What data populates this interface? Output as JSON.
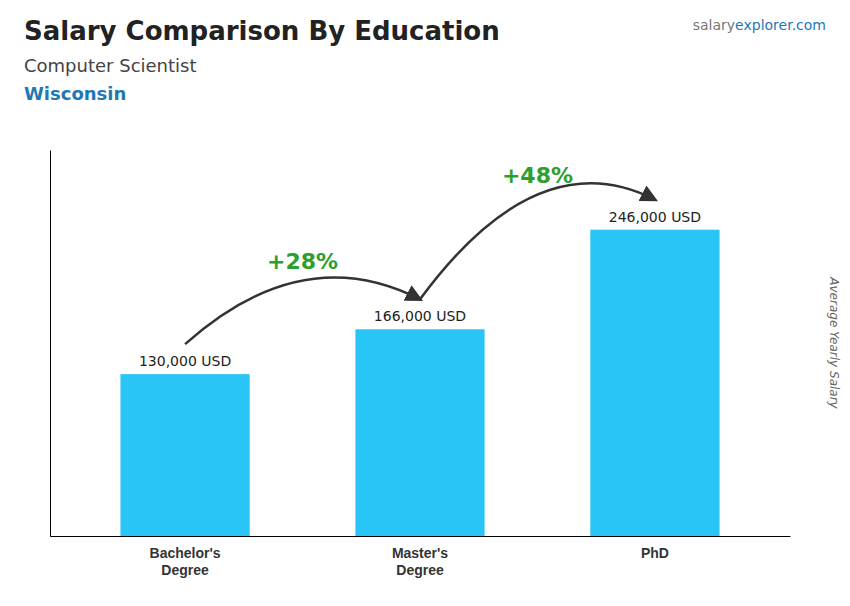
{
  "chart_data": {
    "type": "bar",
    "title": "Salary Comparison By Education",
    "subtitle": "Computer Scientist",
    "location": "Wisconsin",
    "ylabel": "Average Yearly Salary",
    "categories": [
      "Bachelor's\nDegree",
      "Master's\nDegree",
      "PhD"
    ],
    "values": [
      130000,
      166000,
      246000
    ],
    "value_labels": [
      "130,000 USD",
      "166,000 USD",
      "246,000 USD"
    ],
    "data_labels": true,
    "annotations": [
      "+28%",
      "+48%"
    ],
    "watermark": [
      "salary",
      "explorer",
      ".com"
    ],
    "color": "#29c5f6",
    "ylim": [
      0,
      310000
    ],
    "yticks": [],
    "grid": false,
    "tick_labels": "x"
  }
}
